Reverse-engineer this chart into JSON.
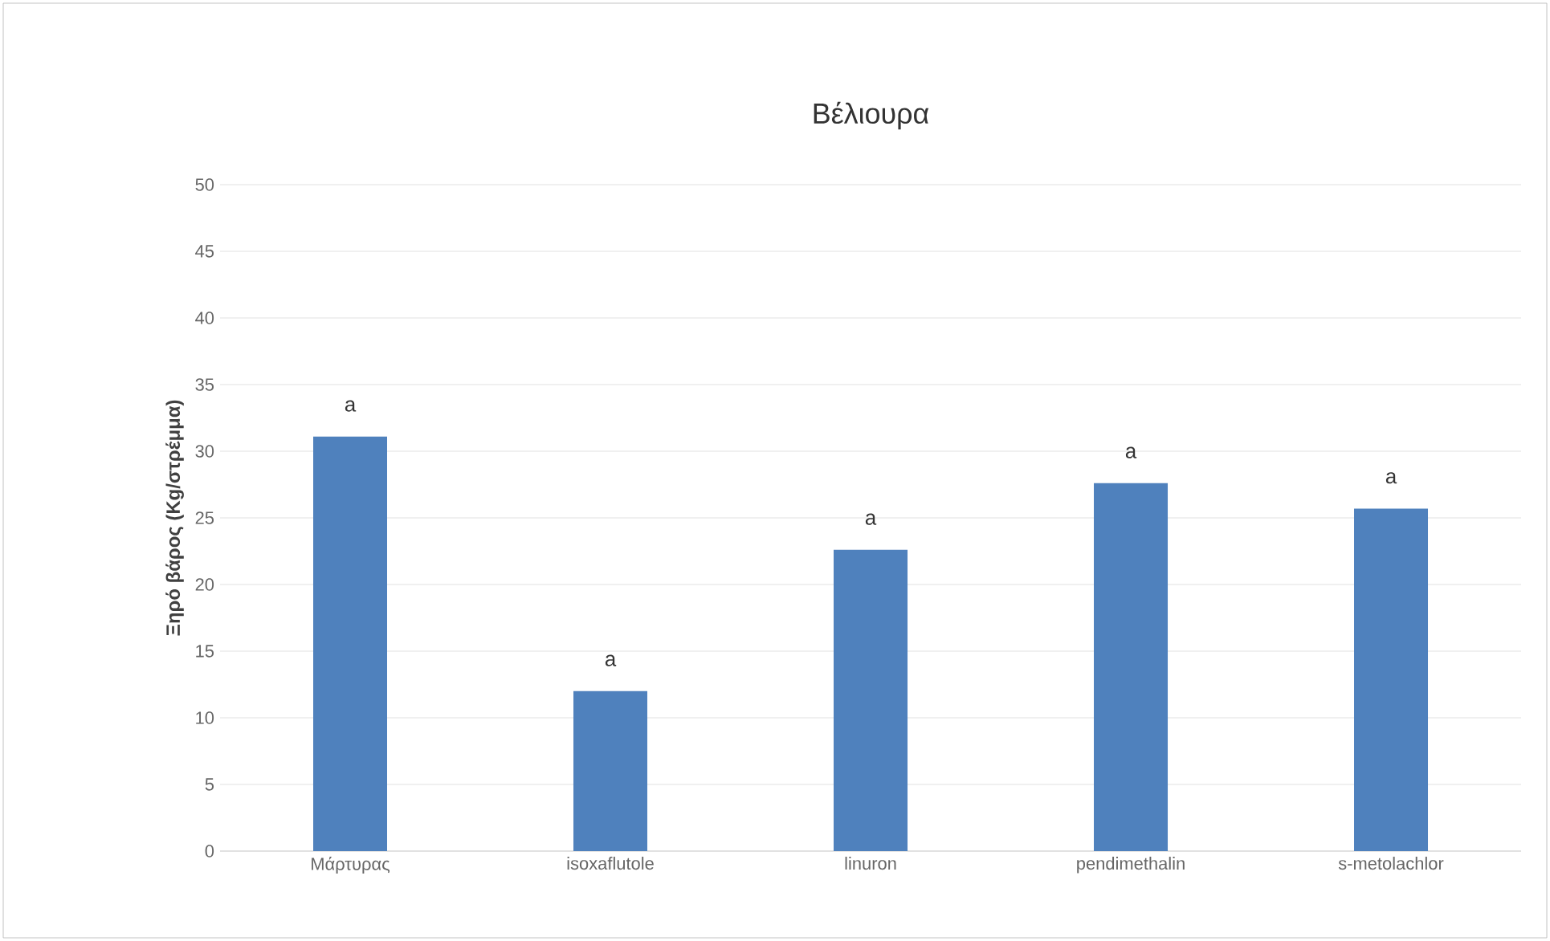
{
  "chart_data": {
    "type": "bar",
    "title": "Βέλιουρα",
    "ylabel": "Ξηρό βάρος (Kg/στρέμμα)",
    "categories": [
      "Μάρτυρας",
      "isoxaflutole",
      "linuron",
      "pendimethalin",
      "s-metolachlor"
    ],
    "values": [
      31.1,
      12.0,
      22.6,
      27.6,
      25.7
    ],
    "color": "#4f81bd",
    "ylim": [
      0,
      50
    ],
    "yticks": [
      0,
      5,
      10,
      15,
      20,
      25,
      30,
      35,
      40,
      45,
      50
    ],
    "grid": "y",
    "annotations": [
      "a",
      "a",
      "a",
      "a",
      "a"
    ]
  }
}
